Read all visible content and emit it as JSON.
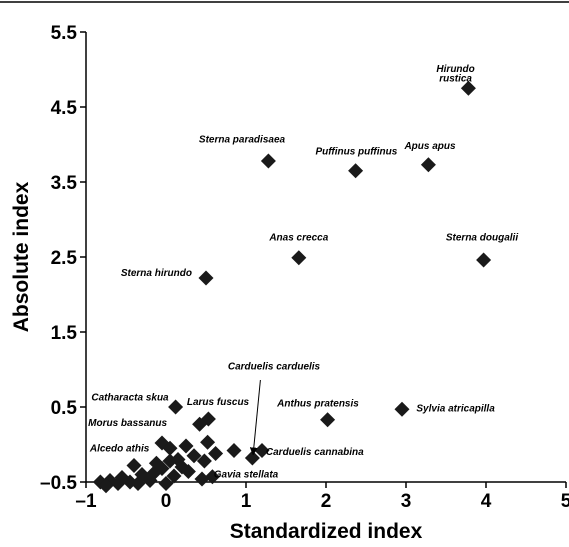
{
  "chart_data": {
    "type": "scatter",
    "xlabel": "Standardized index",
    "ylabel": "Absolute index",
    "xlim": [
      -1,
      5
    ],
    "ylim": [
      -0.5,
      5.5
    ],
    "x_ticks": [
      "–1",
      "0",
      "1",
      "2",
      "3",
      "4",
      "5"
    ],
    "y_ticks": [
      "–0.5",
      "0.5",
      "1.5",
      "2.5",
      "3.5",
      "4.5",
      "5.5"
    ],
    "grid": false,
    "legend": "none",
    "marker": "diamond",
    "marker_color": "#1a1a1a",
    "points": [
      {
        "x": 3.78,
        "y": 4.75,
        "label": "Hirundo rustica"
      },
      {
        "x": 1.28,
        "y": 3.78,
        "label": "Sterna paradisaea"
      },
      {
        "x": 2.37,
        "y": 3.65,
        "label": "Puffinus puffinus"
      },
      {
        "x": 3.28,
        "y": 3.73,
        "label": "Apus apus"
      },
      {
        "x": 1.66,
        "y": 2.49,
        "label": "Anas crecca"
      },
      {
        "x": 3.97,
        "y": 2.46,
        "label": "Sterna dougalii"
      },
      {
        "x": 0.5,
        "y": 2.22,
        "label": "Sterna hirundo"
      },
      {
        "x": 2.95,
        "y": 0.47,
        "label": "Sylvia atricapilla"
      },
      {
        "x": 2.02,
        "y": 0.33,
        "label": "Anthus pratensis"
      },
      {
        "x": 0.12,
        "y": 0.5,
        "label": "Catharacta skua"
      },
      {
        "x": 0.53,
        "y": 0.34,
        "label": "Larus fuscus"
      },
      {
        "x": 0.42,
        "y": 0.27,
        "label": ""
      },
      {
        "x": -0.05,
        "y": 0.02,
        "label": ""
      },
      {
        "x": 0.05,
        "y": -0.05,
        "label": ""
      },
      {
        "x": 0.25,
        "y": -0.02,
        "label": ""
      },
      {
        "x": 0.52,
        "y": 0.03,
        "label": ""
      },
      {
        "x": 0.85,
        "y": -0.08,
        "label": ""
      },
      {
        "x": 1.08,
        "y": -0.18,
        "label": "Carduelis carduelis"
      },
      {
        "x": 1.2,
        "y": -0.08,
        "label": ""
      },
      {
        "x": 0.35,
        "y": -0.15,
        "label": ""
      },
      {
        "x": 0.15,
        "y": -0.2,
        "label": ""
      },
      {
        "x": -0.12,
        "y": -0.25,
        "label": ""
      },
      {
        "x": 0.48,
        "y": -0.22,
        "label": ""
      },
      {
        "x": 0.62,
        "y": -0.12,
        "label": ""
      },
      {
        "x": -0.4,
        "y": -0.28,
        "label": ""
      },
      {
        "x": -0.05,
        "y": -0.32,
        "label": ""
      },
      {
        "x": 0.28,
        "y": -0.36,
        "label": ""
      },
      {
        "x": 0.58,
        "y": -0.43,
        "label": "Gavia stellata"
      },
      {
        "x": 0.45,
        "y": -0.46,
        "label": ""
      },
      {
        "x": -0.3,
        "y": -0.4,
        "label": ""
      },
      {
        "x": -0.55,
        "y": -0.44,
        "label": ""
      },
      {
        "x": -0.7,
        "y": -0.48,
        "label": ""
      },
      {
        "x": -0.82,
        "y": -0.5,
        "label": ""
      },
      {
        "x": -0.6,
        "y": -0.52,
        "label": ""
      },
      {
        "x": -0.45,
        "y": -0.5,
        "label": ""
      },
      {
        "x": -0.2,
        "y": -0.48,
        "label": ""
      },
      {
        "x": 0.0,
        "y": -0.52,
        "label": ""
      },
      {
        "x": 0.1,
        "y": -0.42,
        "label": ""
      },
      {
        "x": -0.15,
        "y": -0.38,
        "label": ""
      },
      {
        "x": 0.2,
        "y": -0.3,
        "label": ""
      },
      {
        "x": -0.35,
        "y": -0.52,
        "label": ""
      },
      {
        "x": -0.75,
        "y": -0.55,
        "label": ""
      },
      {
        "x": 0.05,
        "y": -0.22,
        "label": ""
      }
    ],
    "annotations": [
      {
        "text": "Hirundo",
        "x": 3.62,
        "y": 4.97,
        "anchor": "middle"
      },
      {
        "text": "rustica",
        "x": 3.62,
        "y": 4.84,
        "anchor": "middle"
      },
      {
        "text": "Sterna paradisaea",
        "x": 0.95,
        "y": 4.03,
        "anchor": "middle"
      },
      {
        "text": "Puffinus puffinus",
        "x": 2.38,
        "y": 3.87,
        "anchor": "middle"
      },
      {
        "text": "Apus apus",
        "x": 3.3,
        "y": 3.94,
        "anchor": "middle"
      },
      {
        "text": "Anas crecca",
        "x": 1.66,
        "y": 2.72,
        "anchor": "middle"
      },
      {
        "text": "Sterna dougalii",
        "x": 3.95,
        "y": 2.72,
        "anchor": "middle"
      },
      {
        "text": "Sterna hirundo",
        "x": -0.12,
        "y": 2.25,
        "anchor": "middle"
      },
      {
        "text": "Carduelis carduelis",
        "x": 1.35,
        "y": 1.0,
        "anchor": "middle"
      },
      {
        "text": "Catharacta skua",
        "x": -0.45,
        "y": 0.59,
        "anchor": "middle"
      },
      {
        "text": "Larus fuscus",
        "x": 0.65,
        "y": 0.53,
        "anchor": "middle"
      },
      {
        "text": "Anthus pratensis",
        "x": 1.9,
        "y": 0.51,
        "anchor": "middle"
      },
      {
        "text": "Sylvia atricapilla",
        "x": 3.62,
        "y": 0.44,
        "anchor": "middle"
      },
      {
        "text": "Morus bassanus",
        "x": -0.48,
        "y": 0.25,
        "anchor": "middle"
      },
      {
        "text": "Alcedo athis",
        "x": -0.58,
        "y": -0.09,
        "anchor": "middle"
      },
      {
        "text": "Carduelis cannabina",
        "x": 1.86,
        "y": -0.14,
        "anchor": "middle"
      },
      {
        "text": "Gavia stellata",
        "x": 1.0,
        "y": -0.44,
        "anchor": "middle"
      }
    ],
    "arrow": {
      "from": {
        "x": 1.18,
        "y": 0.86
      },
      "to": {
        "x": 1.09,
        "y": -0.12
      }
    }
  }
}
